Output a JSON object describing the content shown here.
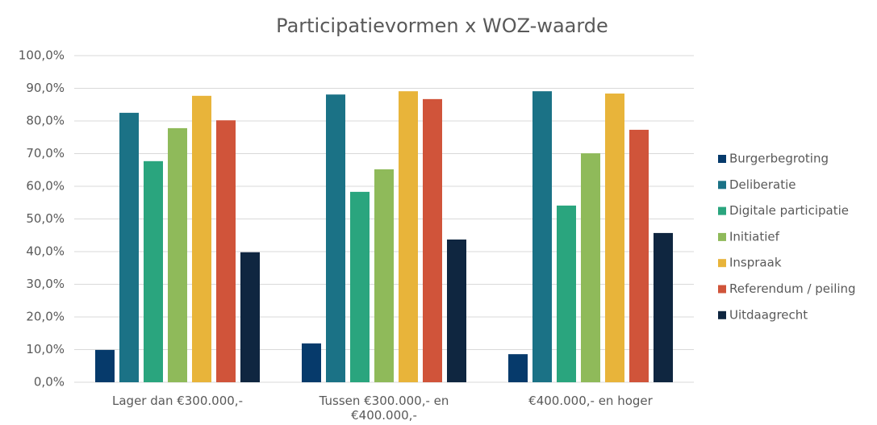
{
  "chart_data": {
    "type": "bar",
    "title": "Participatievormen x WOZ-waarde",
    "categories": [
      "Lager dan €300.000,-",
      "Tussen €300.000,- en €400.000,-",
      "€400.000,- en hoger"
    ],
    "series": [
      {
        "name": "Burgerbegroting",
        "color": "#063a6b",
        "values": [
          9.9,
          11.9,
          8.6
        ]
      },
      {
        "name": "Deliberatie",
        "color": "#1b7286",
        "values": [
          82.5,
          88.1,
          89.1
        ]
      },
      {
        "name": "Digitale participatie",
        "color": "#2aa57e",
        "values": [
          67.7,
          58.3,
          54.1
        ]
      },
      {
        "name": "Initiatief",
        "color": "#8fba5a",
        "values": [
          77.8,
          65.2,
          70.1
        ]
      },
      {
        "name": "Inspraak",
        "color": "#e8b43a",
        "values": [
          87.7,
          89.1,
          88.4
        ]
      },
      {
        "name": "Referendum / peiling",
        "color": "#d0543a",
        "values": [
          80.2,
          86.7,
          77.3
        ]
      },
      {
        "name": "Uitdaagrecht",
        "color": "#0f2640",
        "values": [
          39.8,
          43.7,
          45.7
        ]
      }
    ],
    "ylim": [
      0,
      100
    ],
    "yticks": [
      {
        "value": 0,
        "label": "0,0%"
      },
      {
        "value": 10,
        "label": "10,0%"
      },
      {
        "value": 20,
        "label": "20,0%"
      },
      {
        "value": 30,
        "label": "30,0%"
      },
      {
        "value": 40,
        "label": "40,0%"
      },
      {
        "value": 50,
        "label": "50,0%"
      },
      {
        "value": 60,
        "label": "60,0%"
      },
      {
        "value": 70,
        "label": "70,0%"
      },
      {
        "value": 80,
        "label": "80,0%"
      },
      {
        "value": 90,
        "label": "90,0%"
      },
      {
        "value": 100,
        "label": "100,0%"
      }
    ],
    "grid": true,
    "legend": "right"
  }
}
